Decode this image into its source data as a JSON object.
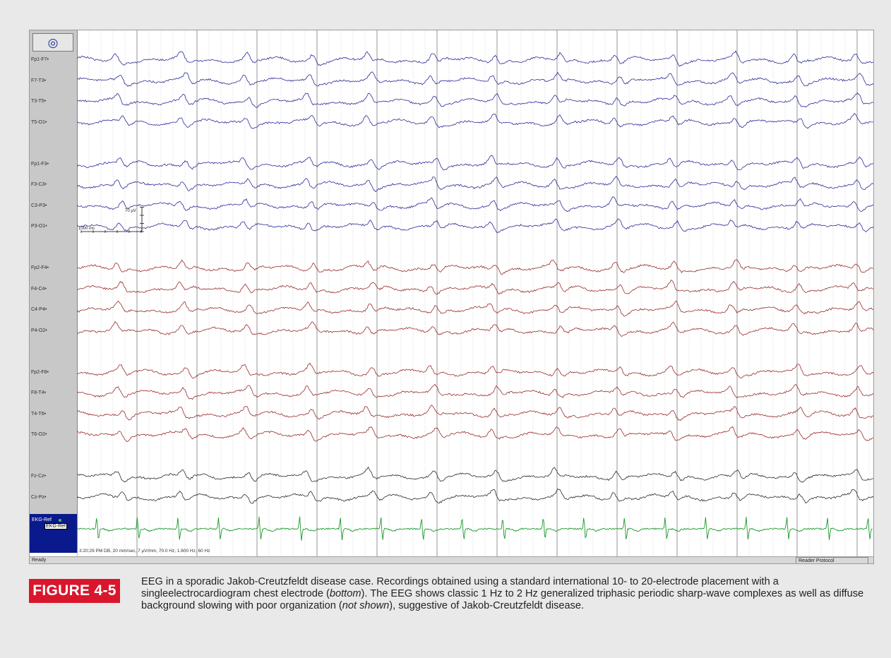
{
  "eeg_window": {
    "icon": "target-icon",
    "montage_groups": [
      {
        "color": "#2b2b9a",
        "channels": [
          "Fp1-F7•",
          "F7-T3•",
          "T3-T5•",
          "T5-O1•"
        ]
      },
      {
        "color": "#2b2b9a",
        "channels": [
          "Fp1-F3•",
          "F3-C3•",
          "C3-P3•",
          "P3-O1•"
        ]
      },
      {
        "color": "#9a2b2b",
        "channels": [
          "Fp2-F4•",
          "F4-C4•",
          "C4-P4•",
          "P4-O2•"
        ]
      },
      {
        "color": "#9a2b2b",
        "channels": [
          "Fp2-F8•",
          "F8-T4•",
          "T4-T6•",
          "T6-O2•"
        ]
      },
      {
        "color": "#2a2a2a",
        "channels": [
          "Fz-Cz•",
          "Cz-Pz•"
        ]
      }
    ],
    "separator_label": "·",
    "ekg": {
      "label": "EKG-Ref",
      "tag": "EKG-Ref",
      "color": "#1a9a2a"
    },
    "scale_bar": {
      "amplitude": "70 µV",
      "time": "1000 ms"
    },
    "info_text": "3:20:29 PM DB, 20 mm/sec, 7 µV/mm, 70.0 Hz, 1.600 Hz, 60 Hz",
    "status": {
      "left": "Ready",
      "right": "Reader Protocol"
    }
  },
  "figure": {
    "label": "FIGURE 4-5",
    "caption_parts": [
      {
        "text": "EEG in a sporadic Jakob-Creutzfeldt disease case. Recordings obtained using a standard international 10- to 20-electrode placement with a singleelectrocardiogram chest electrode (",
        "italic": false
      },
      {
        "text": "bottom",
        "italic": true
      },
      {
        "text": "). The EEG shows classic 1 Hz to 2 Hz generalized triphasic periodic sharp-wave complexes as well as diffuse background slowing with poor organization (",
        "italic": false
      },
      {
        "text": "not shown",
        "italic": true
      },
      {
        "text": "), suggestive of Jakob-Creutzfeldt disease.",
        "italic": false
      }
    ]
  }
}
